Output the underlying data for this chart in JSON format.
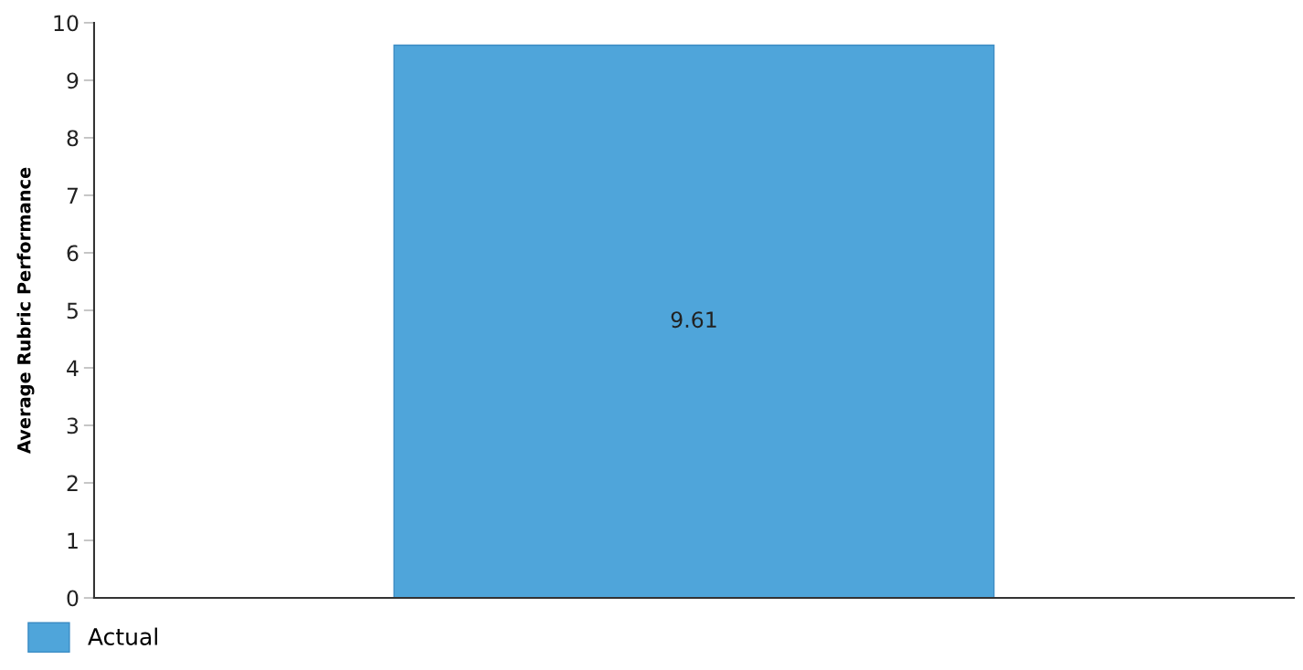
{
  "chart_data": {
    "type": "bar",
    "ylabel": "Average Rubric Performance",
    "categories": [
      null
    ],
    "series": [
      {
        "name": "Actual",
        "color": "#4fa5da",
        "values": [
          9.61
        ]
      }
    ],
    "ylim": [
      0,
      10
    ],
    "yticks": [
      0,
      1,
      2,
      3,
      4,
      5,
      6,
      7,
      8,
      9,
      10
    ],
    "data_labels": true,
    "grid": false,
    "legend": "bottom left"
  }
}
